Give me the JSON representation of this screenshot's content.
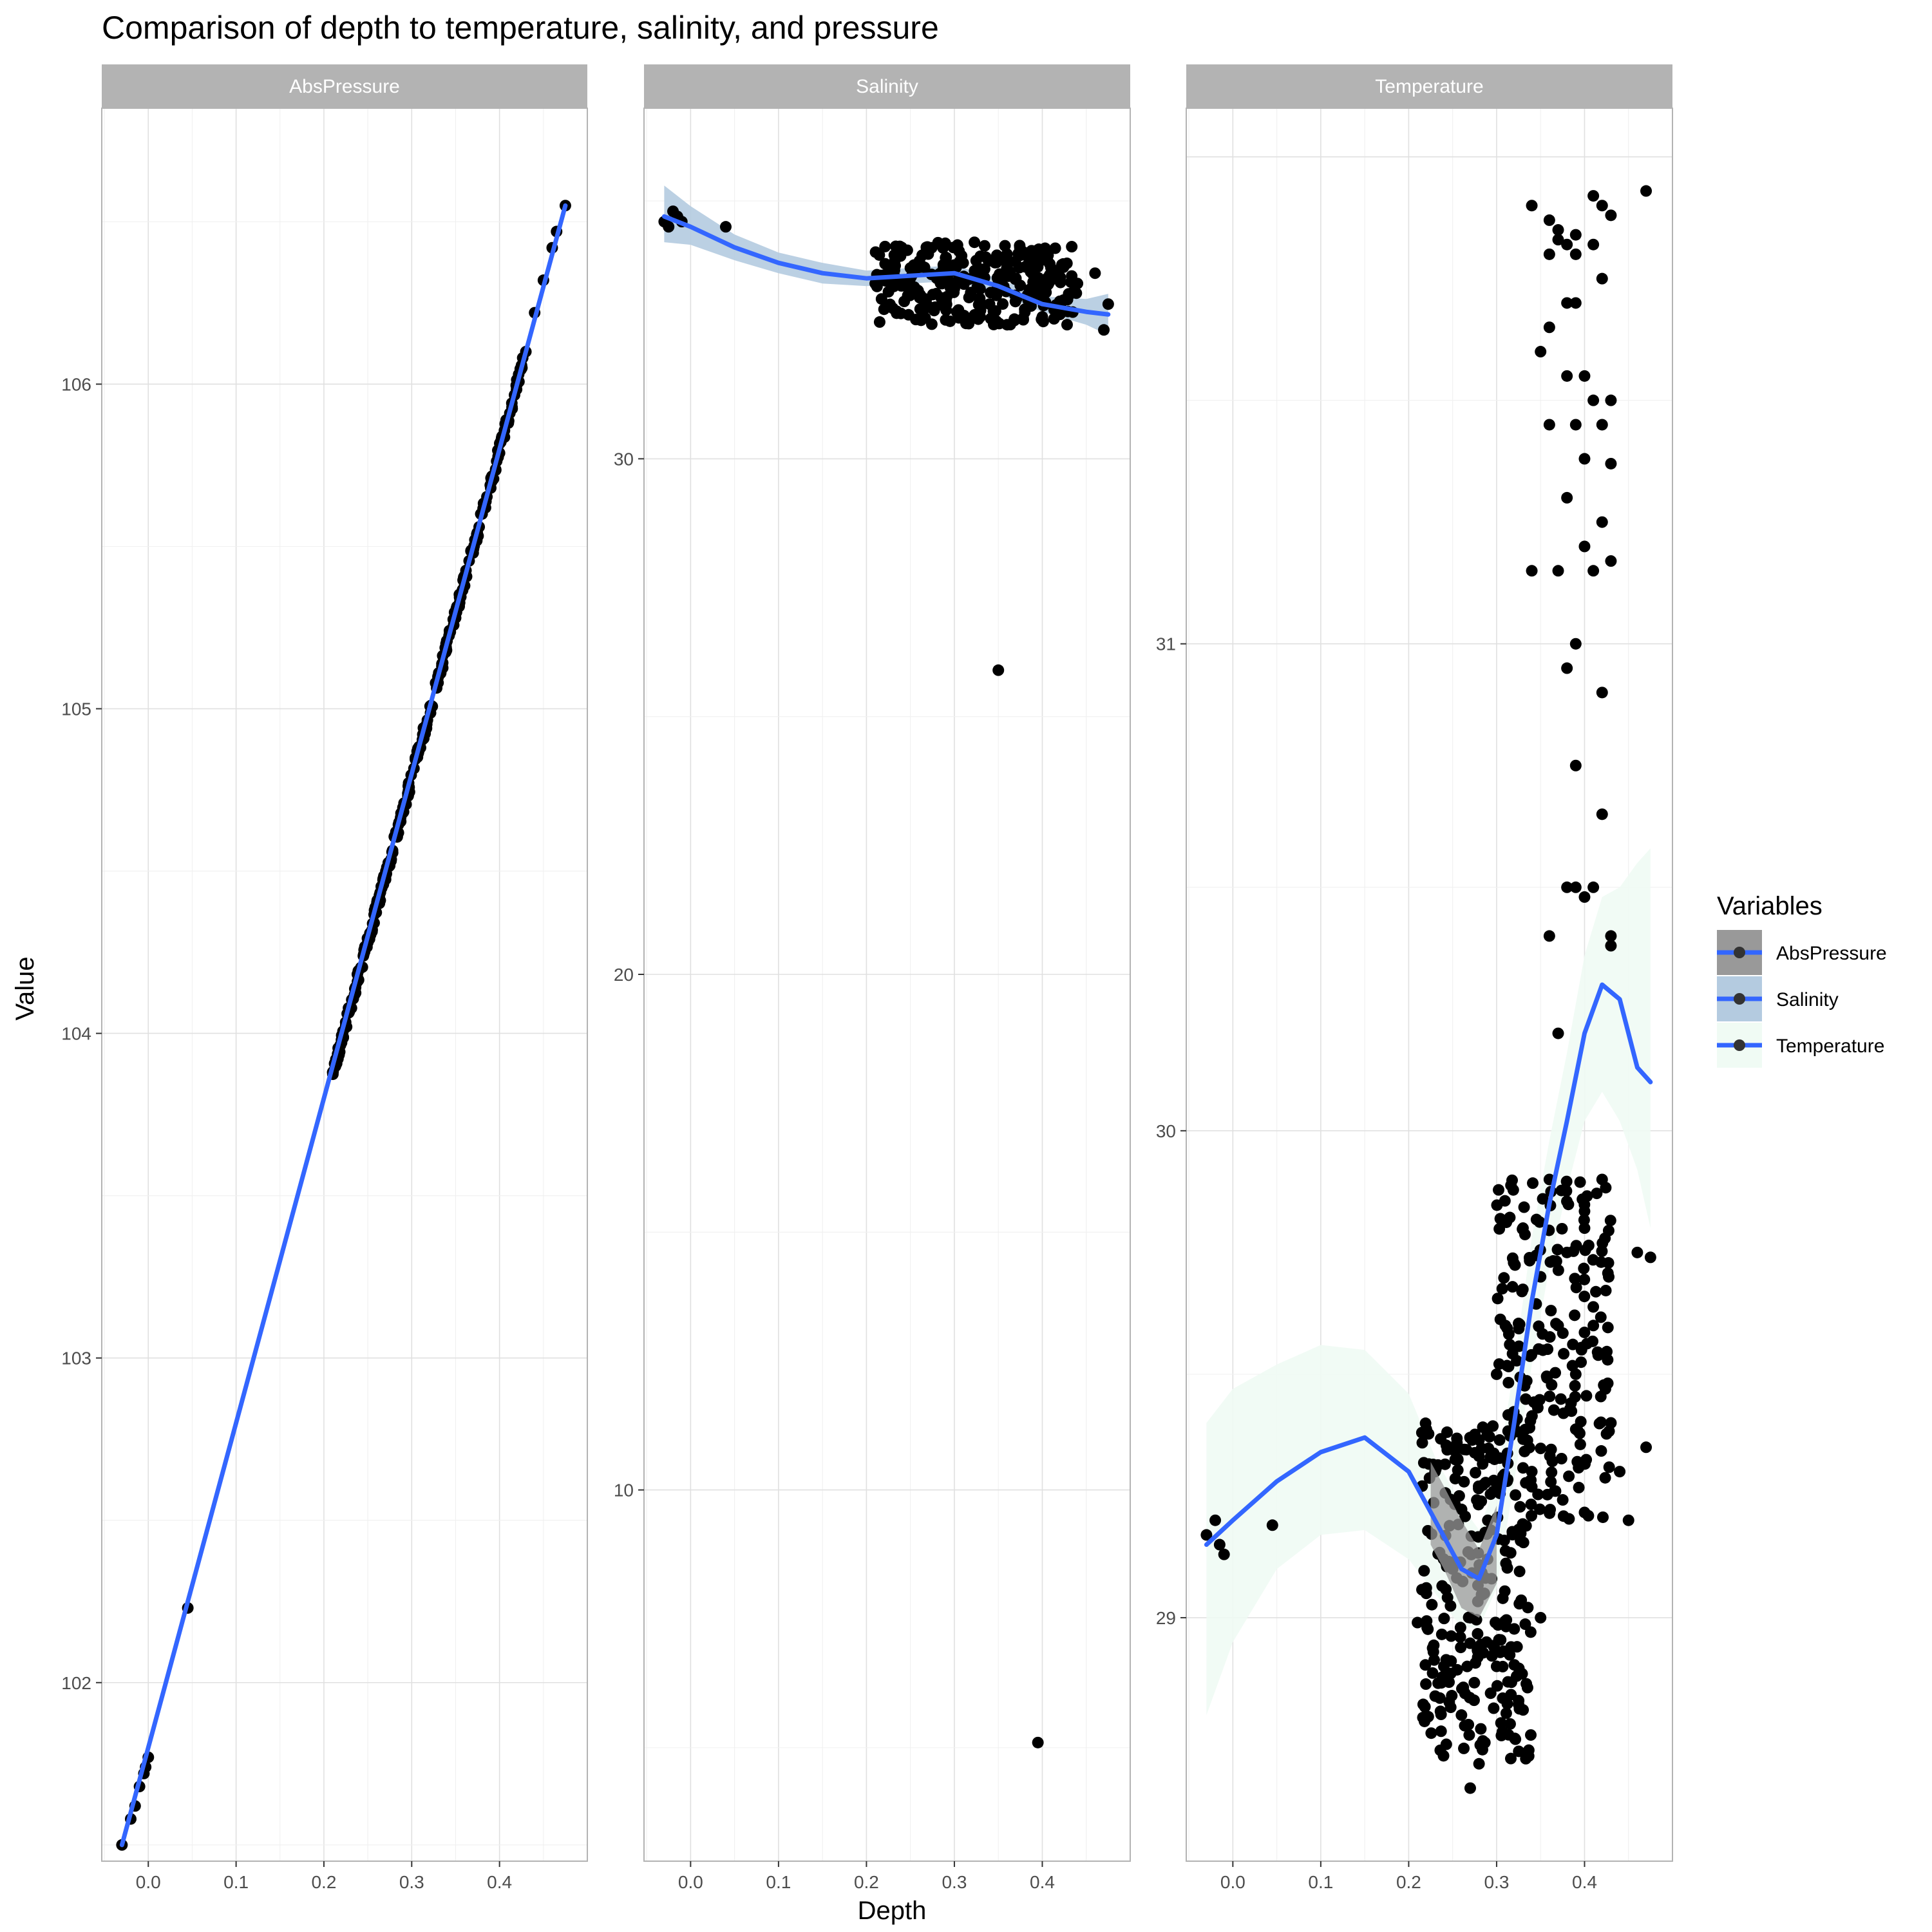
{
  "chart_data": {
    "type": "scatter",
    "title": "Comparison of depth to temperature, salinity, and pressure",
    "xlabel": "Depth",
    "ylabel": "Value",
    "legend": {
      "title": "Variables",
      "placement": "right",
      "entries": [
        {
          "name": "AbsPressure",
          "ribbon_color": "#999999"
        },
        {
          "name": "Salinity",
          "ribbon_color": "#b4cbe0"
        },
        {
          "name": "Temperature",
          "ribbon_color": "#f0fbf4"
        }
      ]
    },
    "smooth_color": "#3366ff",
    "point_color": "#000000",
    "grid": true,
    "panels": [
      {
        "strip": "AbsPressure",
        "xlim": [
          -0.053,
          0.5
        ],
        "ylim": [
          101.45,
          106.85
        ],
        "xticks": [
          0.0,
          0.1,
          0.2,
          0.3,
          0.4
        ],
        "xtick_labels": [
          "0.0",
          "0.1",
          "0.2",
          "0.3",
          "0.4"
        ],
        "yticks": [
          102,
          103,
          104,
          105,
          106
        ],
        "ytick_labels": [
          "102",
          "103",
          "104",
          "105",
          "106"
        ],
        "points": [
          [
            -0.03,
            101.5
          ],
          [
            -0.02,
            101.58
          ],
          [
            -0.015,
            101.62
          ],
          [
            -0.01,
            101.68
          ],
          [
            -0.005,
            101.72
          ],
          [
            -0.003,
            101.74
          ],
          [
            0.0,
            101.77
          ],
          [
            0.045,
            102.23
          ],
          [
            0.21,
            103.88
          ],
          [
            0.22,
            103.98
          ],
          [
            0.23,
            104.08
          ],
          [
            0.25,
            104.28
          ],
          [
            0.27,
            104.48
          ],
          [
            0.29,
            104.68
          ],
          [
            0.31,
            104.88
          ],
          [
            0.33,
            105.08
          ],
          [
            0.35,
            105.28
          ],
          [
            0.37,
            105.48
          ],
          [
            0.39,
            105.68
          ],
          [
            0.41,
            105.88
          ],
          [
            0.42,
            106.0
          ],
          [
            0.43,
            106.1
          ],
          [
            0.44,
            106.22
          ],
          [
            0.45,
            106.32
          ],
          [
            0.46,
            106.42
          ],
          [
            0.465,
            106.47
          ],
          [
            0.475,
            106.55
          ]
        ],
        "dense_band": {
          "x_from": 0.21,
          "x_to": 0.43,
          "y_from": 103.88,
          "y_to": 106.1
        },
        "smooth": [
          [
            -0.03,
            101.5
          ],
          [
            0.475,
            106.55
          ]
        ],
        "ribbon": []
      },
      {
        "strip": "Salinity",
        "xlim": [
          -0.053,
          0.5
        ],
        "ylim": [
          2.8,
          36.8
        ],
        "xticks": [
          0.0,
          0.1,
          0.2,
          0.3,
          0.4
        ],
        "xtick_labels": [
          "0.0",
          "0.1",
          "0.2",
          "0.3",
          "0.4"
        ],
        "yticks": [
          10,
          20,
          30
        ],
        "ytick_labels": [
          "10",
          "20",
          "30"
        ],
        "points": [
          [
            -0.03,
            34.6
          ],
          [
            -0.025,
            34.5
          ],
          [
            -0.02,
            34.8
          ],
          [
            -0.015,
            34.7
          ],
          [
            -0.01,
            34.6
          ],
          [
            0.04,
            34.5
          ],
          [
            0.21,
            33.4
          ],
          [
            0.22,
            32.9
          ],
          [
            0.23,
            33.6
          ],
          [
            0.24,
            34.1
          ],
          [
            0.25,
            33.7
          ],
          [
            0.26,
            33.2
          ],
          [
            0.27,
            34.0
          ],
          [
            0.28,
            33.5
          ],
          [
            0.29,
            33.9
          ],
          [
            0.3,
            33.3
          ],
          [
            0.31,
            33.8
          ],
          [
            0.32,
            33.5
          ],
          [
            0.33,
            33.6
          ],
          [
            0.34,
            33.0
          ],
          [
            0.35,
            33.4
          ],
          [
            0.36,
            32.6
          ],
          [
            0.37,
            33.5
          ],
          [
            0.38,
            32.9
          ],
          [
            0.39,
            33.3
          ],
          [
            0.4,
            32.7
          ],
          [
            0.41,
            33.5
          ],
          [
            0.42,
            32.8
          ],
          [
            0.43,
            33.2
          ],
          [
            0.44,
            33.4
          ],
          [
            0.46,
            33.6
          ],
          [
            0.47,
            32.5
          ],
          [
            0.475,
            33.0
          ],
          [
            0.35,
            25.9
          ],
          [
            0.395,
            5.1
          ]
        ],
        "dense_band": {
          "x_from": 0.21,
          "x_to": 0.44,
          "y_from": 32.6,
          "y_to": 34.2
        },
        "smooth": [
          [
            -0.03,
            34.7
          ],
          [
            0.0,
            34.5
          ],
          [
            0.05,
            34.1
          ],
          [
            0.1,
            33.8
          ],
          [
            0.15,
            33.6
          ],
          [
            0.2,
            33.5
          ],
          [
            0.25,
            33.55
          ],
          [
            0.3,
            33.6
          ],
          [
            0.35,
            33.35
          ],
          [
            0.4,
            33.0
          ],
          [
            0.45,
            32.85
          ],
          [
            0.475,
            32.8
          ]
        ],
        "ribbon": [
          [
            -0.03,
            34.2,
            35.3
          ],
          [
            0.0,
            34.15,
            34.9
          ],
          [
            0.05,
            33.85,
            34.35
          ],
          [
            0.1,
            33.6,
            34.0
          ],
          [
            0.15,
            33.4,
            33.8
          ],
          [
            0.2,
            33.35,
            33.65
          ],
          [
            0.25,
            33.4,
            33.7
          ],
          [
            0.3,
            33.45,
            33.75
          ],
          [
            0.35,
            33.2,
            33.5
          ],
          [
            0.4,
            32.85,
            33.15
          ],
          [
            0.45,
            32.6,
            33.1
          ],
          [
            0.475,
            32.4,
            33.2
          ]
        ]
      },
      {
        "strip": "Temperature",
        "xlim": [
          -0.053,
          0.5
        ],
        "ylim": [
          28.5,
          32.1
        ],
        "xticks": [
          0.0,
          0.1,
          0.2,
          0.3,
          0.4
        ],
        "xtick_labels": [
          "0.0",
          "0.1",
          "0.2",
          "0.3",
          "0.4"
        ],
        "yticks": [
          29,
          30,
          31
        ],
        "ytick_labels": [
          "29",
          "30",
          "31"
        ],
        "points": [
          [
            -0.03,
            29.17
          ],
          [
            -0.02,
            29.2
          ],
          [
            -0.015,
            29.15
          ],
          [
            -0.01,
            29.13
          ],
          [
            0.045,
            29.19
          ],
          [
            0.21,
            28.99
          ],
          [
            0.215,
            29.38
          ],
          [
            0.22,
            29.05
          ],
          [
            0.23,
            29.3
          ],
          [
            0.24,
            28.9
          ],
          [
            0.25,
            29.1
          ],
          [
            0.26,
            28.8
          ],
          [
            0.27,
            28.65
          ],
          [
            0.27,
            29.0
          ],
          [
            0.28,
            28.7
          ],
          [
            0.29,
            29.2
          ],
          [
            0.3,
            28.9
          ],
          [
            0.3,
            29.5
          ],
          [
            0.31,
            29.6
          ],
          [
            0.32,
            29.4
          ],
          [
            0.33,
            29.8
          ],
          [
            0.34,
            29.3
          ],
          [
            0.35,
            29.7
          ],
          [
            0.36,
            29.9
          ],
          [
            0.37,
            29.6
          ],
          [
            0.38,
            29.75
          ],
          [
            0.39,
            29.5
          ],
          [
            0.4,
            29.8
          ],
          [
            0.41,
            29.6
          ],
          [
            0.42,
            29.9
          ],
          [
            0.43,
            29.4
          ],
          [
            0.44,
            29.3
          ],
          [
            0.45,
            29.2
          ],
          [
            0.46,
            29.75
          ],
          [
            0.475,
            29.74
          ],
          [
            0.47,
            29.35
          ],
          [
            0.35,
            29.0
          ],
          [
            0.36,
            30.4
          ],
          [
            0.37,
            30.2
          ],
          [
            0.38,
            30.5
          ],
          [
            0.39,
            30.5
          ],
          [
            0.4,
            30.48
          ],
          [
            0.41,
            30.5
          ],
          [
            0.42,
            30.65
          ],
          [
            0.43,
            30.4
          ],
          [
            0.39,
            30.75
          ],
          [
            0.42,
            30.9
          ],
          [
            0.38,
            30.95
          ],
          [
            0.39,
            31.0
          ],
          [
            0.41,
            31.15
          ],
          [
            0.34,
            31.15
          ],
          [
            0.37,
            31.15
          ],
          [
            0.4,
            31.2
          ],
          [
            0.42,
            31.25
          ],
          [
            0.43,
            31.17
          ],
          [
            0.38,
            31.3
          ],
          [
            0.4,
            31.38
          ],
          [
            0.43,
            31.37
          ],
          [
            0.36,
            31.45
          ],
          [
            0.39,
            31.45
          ],
          [
            0.41,
            31.5
          ],
          [
            0.42,
            31.45
          ],
          [
            0.35,
            31.6
          ],
          [
            0.38,
            31.55
          ],
          [
            0.4,
            31.55
          ],
          [
            0.43,
            31.5
          ],
          [
            0.36,
            31.65
          ],
          [
            0.38,
            31.7
          ],
          [
            0.39,
            31.7
          ],
          [
            0.42,
            31.75
          ],
          [
            0.36,
            31.8
          ],
          [
            0.37,
            31.85
          ],
          [
            0.39,
            31.8
          ],
          [
            0.41,
            31.82
          ],
          [
            0.37,
            31.83
          ],
          [
            0.39,
            31.84
          ],
          [
            0.34,
            31.9
          ],
          [
            0.41,
            31.92
          ],
          [
            0.42,
            31.9
          ],
          [
            0.43,
            31.88
          ],
          [
            0.47,
            31.93
          ],
          [
            0.36,
            31.87
          ],
          [
            0.38,
            31.82
          ],
          [
            0.43,
            30.38
          ]
        ],
        "dense_band": {
          "x_from": 0.215,
          "x_to": 0.34,
          "y_from": 28.7,
          "y_to": 29.4
        },
        "dense_band_2": {
          "x_from": 0.3,
          "x_to": 0.43,
          "y_from": 29.2,
          "y_to": 29.9
        },
        "smooth": [
          [
            -0.03,
            29.15
          ],
          [
            0.0,
            29.2
          ],
          [
            0.05,
            29.28
          ],
          [
            0.1,
            29.34
          ],
          [
            0.15,
            29.37
          ],
          [
            0.2,
            29.3
          ],
          [
            0.23,
            29.2
          ],
          [
            0.26,
            29.1
          ],
          [
            0.28,
            29.08
          ],
          [
            0.3,
            29.17
          ],
          [
            0.32,
            29.4
          ],
          [
            0.34,
            29.65
          ],
          [
            0.36,
            29.85
          ],
          [
            0.38,
            30.02
          ],
          [
            0.4,
            30.2
          ],
          [
            0.42,
            30.3
          ],
          [
            0.44,
            30.27
          ],
          [
            0.46,
            30.13
          ],
          [
            0.475,
            30.1
          ]
        ],
        "ribbon": [
          [
            -0.03,
            28.8,
            29.4
          ],
          [
            0.0,
            28.95,
            29.47
          ],
          [
            0.05,
            29.1,
            29.52
          ],
          [
            0.1,
            29.17,
            29.56
          ],
          [
            0.15,
            29.18,
            29.55
          ],
          [
            0.2,
            29.12,
            29.46
          ],
          [
            0.23,
            29.05,
            29.33
          ],
          [
            0.26,
            28.98,
            29.23
          ],
          [
            0.28,
            28.98,
            29.18
          ],
          [
            0.3,
            29.06,
            29.28
          ],
          [
            0.32,
            29.28,
            29.52
          ],
          [
            0.34,
            29.52,
            29.78
          ],
          [
            0.36,
            29.72,
            29.98
          ],
          [
            0.38,
            29.88,
            30.16
          ],
          [
            0.4,
            30.02,
            30.36
          ],
          [
            0.42,
            30.08,
            30.48
          ],
          [
            0.44,
            30.02,
            30.5
          ],
          [
            0.46,
            29.92,
            30.55
          ],
          [
            0.475,
            29.8,
            30.58
          ]
        ],
        "highlight_ribbon": [
          [
            0.225,
            29.15,
            29.32
          ],
          [
            0.24,
            29.1,
            29.27
          ],
          [
            0.26,
            29.02,
            29.2
          ],
          [
            0.28,
            29.0,
            29.14
          ],
          [
            0.3,
            29.07,
            29.23
          ]
        ]
      }
    ]
  }
}
